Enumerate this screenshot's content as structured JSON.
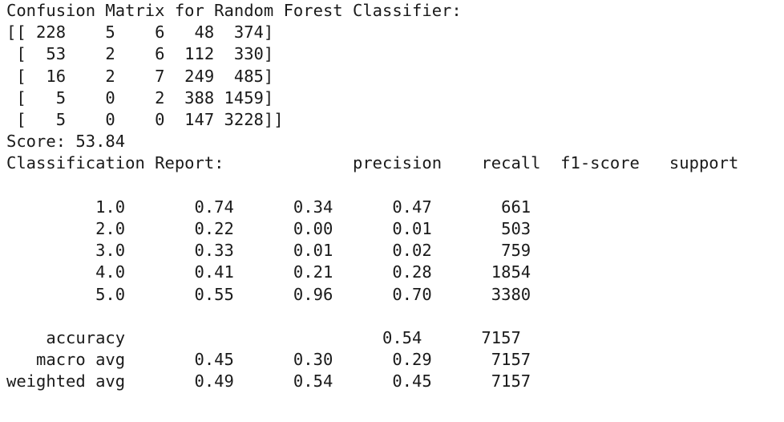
{
  "output": {
    "cm_title": "Confusion Matrix for Random Forest Classifier:",
    "cm_rows": [
      "[[ 228    5    6   48  374]",
      " [  53    2    6  112  330]",
      " [  16    2    7  249  485]",
      " [   5    0    2  388 1459]",
      " [   5    0    0  147 3228]]"
    ],
    "score_line": "Score: 53.84",
    "report_header": "Classification Report:             precision    recall  f1-score   support",
    "report_blank_1": "",
    "report_rows": [
      "         1.0       0.74      0.34      0.47       661",
      "         2.0       0.22      0.00      0.01       503",
      "         3.0       0.33      0.01      0.02       759",
      "         4.0       0.41      0.21      0.28      1854",
      "         5.0       0.55      0.96      0.70      3380"
    ],
    "report_blank_2": "",
    "summary_rows": [
      "    accuracy                          0.54      7157",
      "   macro avg       0.45      0.30      0.29      7157",
      "weighted avg       0.49      0.54      0.45      7157"
    ]
  }
}
